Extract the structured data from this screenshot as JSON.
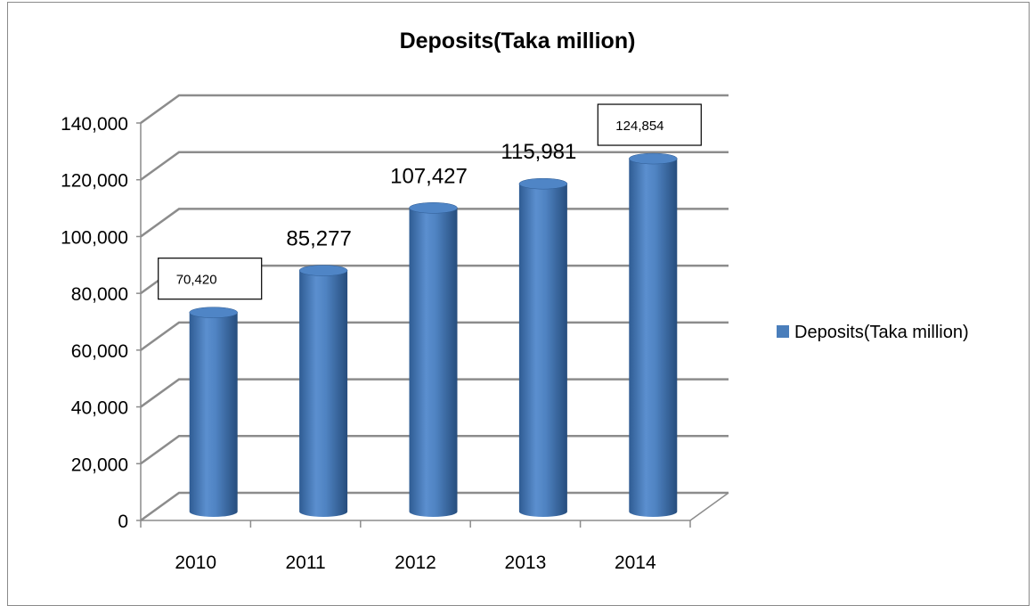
{
  "chart_data": {
    "type": "bar",
    "style": "3d-cylinder",
    "title": "Deposits(Taka million)",
    "xlabel": "",
    "ylabel": "",
    "categories": [
      "2010",
      "2011",
      "2012",
      "2013",
      "2014"
    ],
    "series": [
      {
        "name": "Deposits(Taka million)",
        "values": [
          70420,
          85277,
          107427,
          115981,
          124854
        ],
        "data_labels": [
          "70,420",
          "85,277",
          "107,427",
          "115,981",
          "124,854"
        ],
        "color": "#4a7ebb"
      }
    ],
    "ylim": [
      0,
      140000
    ],
    "ytick_step": 20000,
    "ytick_labels": [
      "0",
      "20,000",
      "40,000",
      "60,000",
      "80,000",
      "100,000",
      "120,000",
      "140,000"
    ],
    "boxed_data_labels": [
      "2010",
      "2014"
    ],
    "grid": true,
    "legend": "right"
  }
}
